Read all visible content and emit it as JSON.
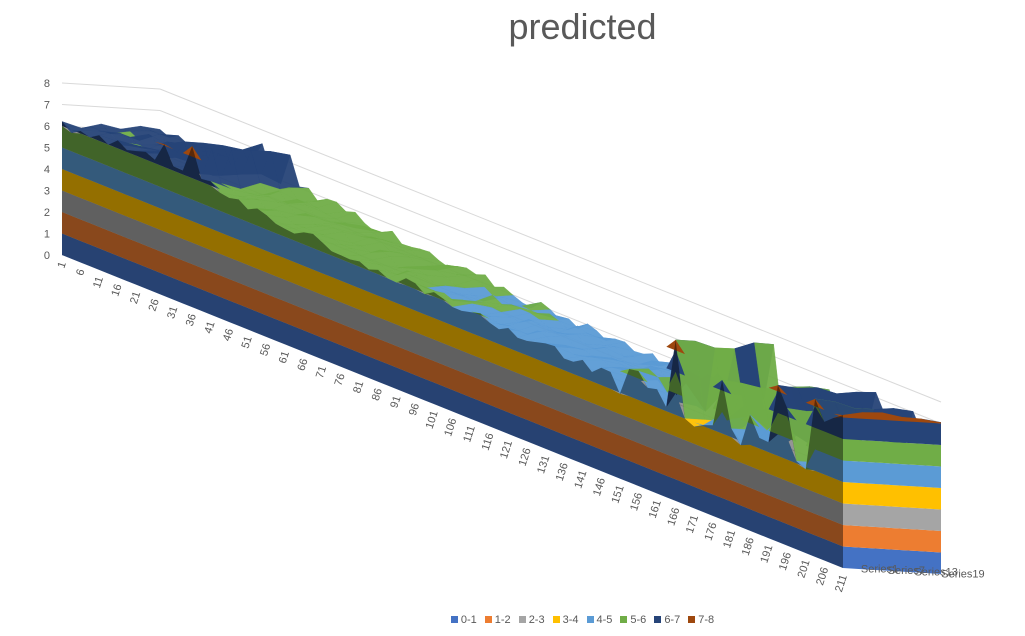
{
  "chart_data": {
    "type": "surface",
    "title": "predicted",
    "x_start": 1,
    "x_end": 211,
    "x_tick_step": 5,
    "x_tick_labels": [
      "1",
      "6",
      "11",
      "16",
      "21",
      "26",
      "31",
      "36",
      "41",
      "46",
      "51",
      "56",
      "61",
      "66",
      "71",
      "76",
      "81",
      "86",
      "91",
      "96",
      "101",
      "106",
      "111",
      "116",
      "121",
      "126",
      "131",
      "136",
      "141",
      "146",
      "151",
      "156",
      "161",
      "166",
      "171",
      "176",
      "181",
      "186",
      "191",
      "196",
      "201",
      "206",
      "211"
    ],
    "series_labels": [
      "Series1",
      "Series7",
      "Series13",
      "Series19"
    ],
    "zlim": [
      0,
      8
    ],
    "z_tick_labels": [
      "0",
      "1",
      "2",
      "3",
      "4",
      "5",
      "6",
      "7",
      "8"
    ],
    "grid": true,
    "legend_position": "bottom",
    "bands": [
      {
        "name": "0-1",
        "color": "#4472C4"
      },
      {
        "name": "1-2",
        "color": "#ED7D31"
      },
      {
        "name": "2-3",
        "color": "#A5A5A5"
      },
      {
        "name": "3-4",
        "color": "#FFC000"
      },
      {
        "name": "4-5",
        "color": "#5B9BD5"
      },
      {
        "name": "5-6",
        "color": "#70AD47"
      },
      {
        "name": "6-7",
        "color": "#264478"
      },
      {
        "name": "7-8",
        "color": "#9E480E"
      }
    ],
    "surface_profile_x": [
      1,
      20,
      40,
      60,
      80,
      100,
      120,
      140,
      150,
      160,
      170,
      180,
      190,
      200,
      211
    ],
    "surface_profile_z": [
      6.0,
      6.2,
      6.0,
      5.6,
      5.3,
      5.0,
      4.8,
      4.7,
      4.6,
      4.8,
      4.6,
      4.7,
      4.9,
      5.0,
      5.5
    ],
    "peaks": [
      {
        "x": 28,
        "z": 7.5
      },
      {
        "x": 36,
        "z": 7.3
      },
      {
        "x": 166,
        "z": 7.4
      },
      {
        "x": 180,
        "z": 7.2
      },
      {
        "x": 194,
        "z": 7.4
      },
      {
        "x": 204,
        "z": 7.5
      },
      {
        "x": 210,
        "z": 7.8
      }
    ],
    "dips": [
      {
        "x": 170,
        "z": 3.4
      },
      {
        "x": 183,
        "z": 3.6
      },
      {
        "x": 200,
        "z": 3.5
      }
    ]
  }
}
